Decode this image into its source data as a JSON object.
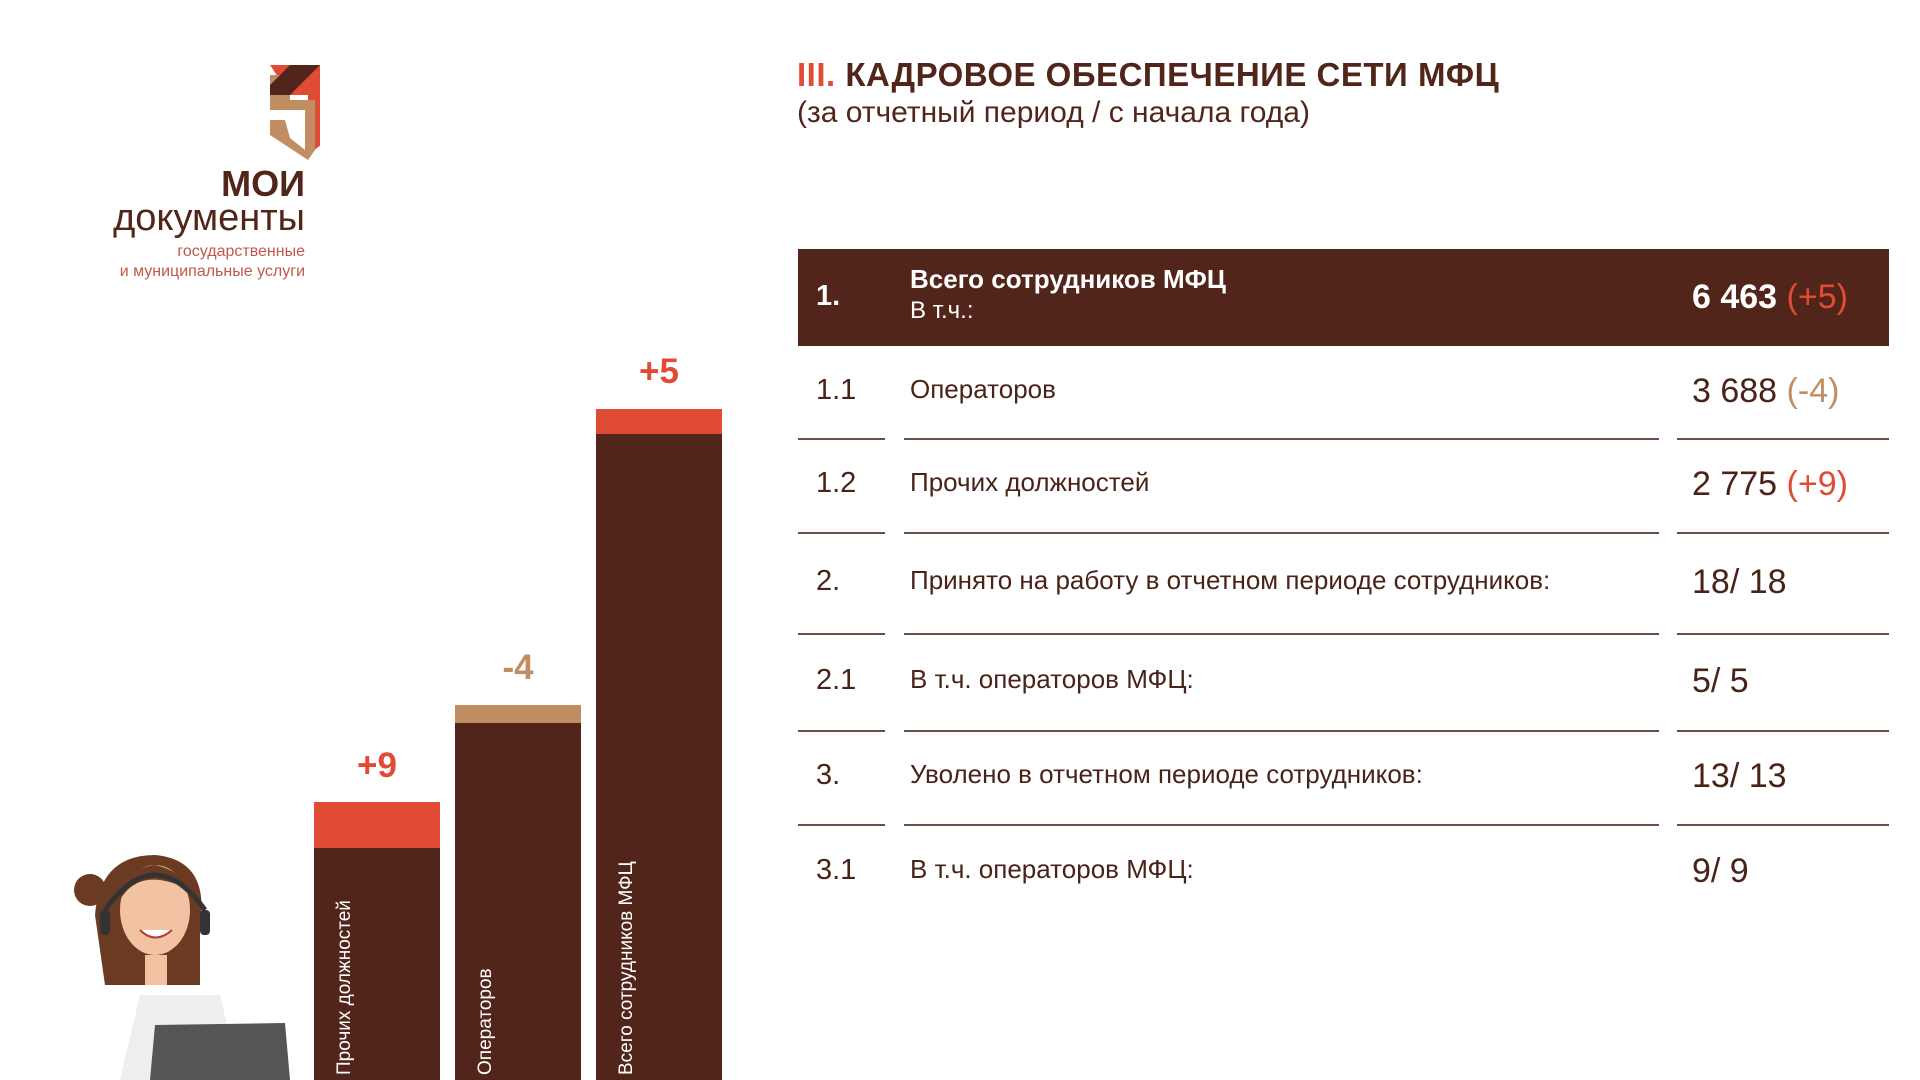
{
  "logo": {
    "line1": "МОИ",
    "line2": "документы",
    "line3": "государственные",
    "line4": "и муниципальные услуги"
  },
  "header": {
    "prefix": "III.",
    "title": "КАДРОВОЕ ОБЕСПЕЧЕНИЕ СЕТИ МФЦ",
    "subtitle": "(за отчетный период / с начала года)"
  },
  "bars": [
    {
      "label": "Прочих должностей",
      "delta": "+9"
    },
    {
      "label": "Операторов",
      "delta": "-4"
    },
    {
      "label": "Всего сотрудников МФЦ",
      "delta": "+5"
    }
  ],
  "table": {
    "rows": [
      {
        "num": "1.",
        "label": "Всего сотрудников МФЦ",
        "sublabel": "В т.ч.:",
        "value": "6 463",
        "delta": "(+5)"
      },
      {
        "num": "1.1",
        "label": "Операторов",
        "value": "3 688",
        "delta": "(-4)"
      },
      {
        "num": "1.2",
        "label": "Прочих должностей",
        "value": "2 775",
        "delta": "(+9)"
      },
      {
        "num": "2.",
        "label": "Принято на работу в отчетном периоде сотрудников:",
        "value": "18/ 18"
      },
      {
        "num": "2.1",
        "label": "В т.ч. операторов МФЦ:",
        "value": "5/ 5"
      },
      {
        "num": "3.",
        "label": "Уволено в отчетном периоде сотрудников:",
        "value": "13/ 13"
      },
      {
        "num": "3.1",
        "label": "В т.ч. операторов МФЦ:",
        "value": "9/ 9"
      }
    ]
  }
}
